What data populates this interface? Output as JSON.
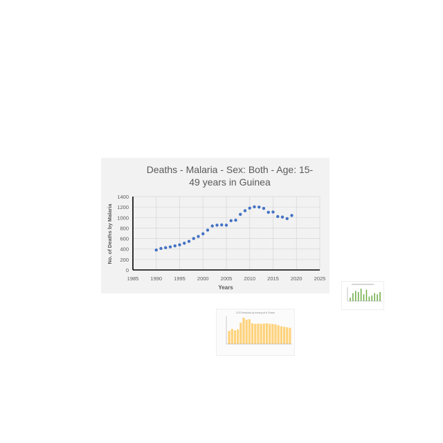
{
  "chart_data": [
    {
      "type": "scatter",
      "title_line1": "Deaths - Malaria - Sex: Both - Age: 15-",
      "title_line2": "49 years in Guinea",
      "xlabel": "Years",
      "ylabel": "No. of Deaths by Malaria",
      "xlim": [
        1985,
        2025
      ],
      "ylim": [
        0,
        1400
      ],
      "xticks": [
        "1985",
        "1990",
        "1995",
        "2000",
        "2005",
        "2010",
        "2015",
        "2020",
        "2025"
      ],
      "yticks": [
        "0",
        "200",
        "400",
        "600",
        "800",
        "1000",
        "1200",
        "1400"
      ],
      "grid": true,
      "legend": "none",
      "marker_color": "#4472c4",
      "x": [
        1990,
        1991,
        1992,
        1993,
        1994,
        1995,
        1996,
        1997,
        1998,
        1999,
        2000,
        2001,
        2002,
        2003,
        2004,
        2005,
        2006,
        2007,
        2008,
        2009,
        2010,
        2011,
        2012,
        2013,
        2014,
        2015,
        2016,
        2017,
        2018,
        2019
      ],
      "y": [
        380,
        410,
        425,
        440,
        460,
        480,
        510,
        545,
        600,
        640,
        690,
        760,
        840,
        855,
        860,
        855,
        940,
        950,
        1060,
        1130,
        1180,
        1205,
        1200,
        1175,
        1100,
        1105,
        1020,
        1010,
        980,
        1040
      ]
    },
    {
      "type": "bar",
      "bar_color": "#70ad47",
      "values": [
        3,
        7,
        9,
        8,
        11,
        6,
        10,
        4,
        5,
        7,
        6,
        8
      ]
    },
    {
      "type": "bar",
      "title": "CO2 Emissions by burning oil in France",
      "bar_color": "#ffd27a",
      "values": [
        260,
        300,
        270,
        290,
        420,
        520,
        480,
        490,
        410,
        400,
        405,
        400,
        405,
        410,
        400,
        395,
        390,
        370,
        350,
        340,
        330,
        320
      ]
    }
  ]
}
